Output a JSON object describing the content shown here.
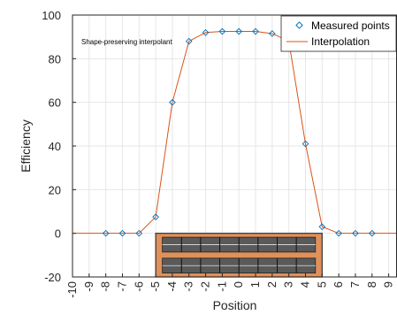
{
  "chart_data": {
    "type": "line",
    "xlabel": "Position",
    "ylabel": "Efficiency",
    "xlim": [
      -10,
      9.5
    ],
    "ylim": [
      -20,
      100
    ],
    "x_ticks": [
      -10,
      -9,
      -8,
      -7,
      -6,
      -5,
      -4,
      -3,
      -2,
      -1,
      0,
      1,
      2,
      3,
      4,
      5,
      6,
      7,
      8,
      9
    ],
    "y_ticks": [
      -20,
      0,
      20,
      40,
      60,
      80,
      100
    ],
    "grid": true,
    "legend_position": "top-right",
    "annotation": "Shape-preserving interpolant",
    "colors": {
      "points": "#0072bd",
      "interpolation": "#d95319",
      "module_fill": "#e0905a",
      "module_border": "#333333",
      "cell_fill": "#5a5a5a"
    },
    "series": [
      {
        "name": "Measured points",
        "kind": "scatter",
        "x": [
          -8,
          -7,
          -6,
          -5,
          -4,
          -3,
          -2,
          -1,
          0,
          1,
          2,
          3,
          4,
          5,
          6,
          7,
          8
        ],
        "y": [
          0,
          0,
          0,
          7.5,
          60,
          88,
          92,
          92.5,
          92.5,
          92.5,
          91.5,
          88,
          41,
          3,
          0,
          0,
          0
        ]
      },
      {
        "name": "Interpolation",
        "kind": "line",
        "x": [
          -10,
          -8,
          -7,
          -6,
          -5,
          -4,
          -3,
          -2,
          -1,
          0,
          1,
          2,
          3,
          4,
          5,
          6,
          7,
          8,
          9.5
        ],
        "y": [
          0,
          0,
          0,
          0,
          7.5,
          60,
          88,
          92,
          92.5,
          92.5,
          92.5,
          91.5,
          88,
          41,
          3,
          0,
          0,
          0,
          0
        ]
      }
    ],
    "module_overlay": {
      "x_range": [
        -5,
        5
      ],
      "y_range": [
        -20,
        0
      ],
      "rows": 2,
      "cols": 8
    }
  }
}
